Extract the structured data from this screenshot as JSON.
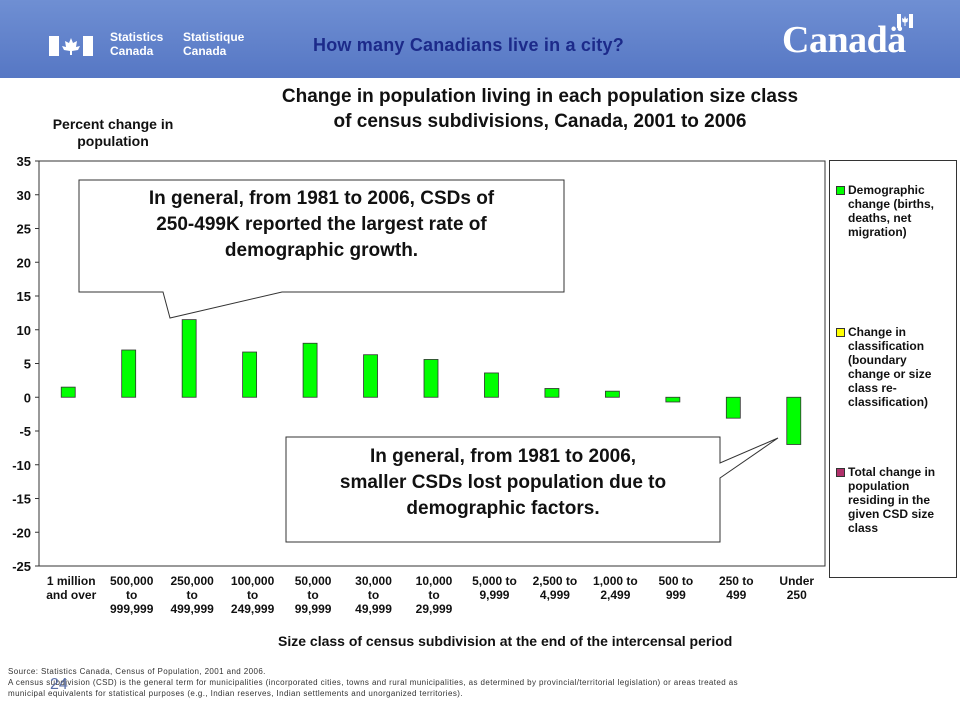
{
  "header": {
    "agency_en_line1": "Statistics",
    "agency_en_line2": "Canada",
    "agency_fr_line1": "Statistique",
    "agency_fr_line2": "Canada",
    "slide_title": "How many Canadians live in a city?",
    "wordmark": "Canadä",
    "banner_color": "#5f80c9",
    "title_color": "#1c2a8a"
  },
  "chart_data": {
    "type": "bar",
    "title": "Change in population living in each population size class of census subdivisions, Canada, 2001 to 2006",
    "title_lines": [
      "Change in population living in each population size class",
      "of census subdivisions, Canada, 2001 to 2006"
    ],
    "ylabel_lines": [
      "Percent change in",
      "population"
    ],
    "xlabel": "Size class of census subdivision at the end of the intercensal period",
    "ylim": [
      -25,
      35
    ],
    "yticks": [
      35,
      30,
      25,
      20,
      15,
      10,
      5,
      0,
      -5,
      -10,
      -15,
      -20,
      -25
    ],
    "grid": false,
    "legend_position": "right",
    "categories": [
      [
        "1 million",
        "and over"
      ],
      [
        "500,000",
        "to",
        "999,999"
      ],
      [
        "250,000",
        "to",
        "499,999"
      ],
      [
        "100,000",
        "to",
        "249,999"
      ],
      [
        "50,000",
        "to",
        "99,999"
      ],
      [
        "30,000",
        "to",
        "49,999"
      ],
      [
        "10,000",
        "to",
        "29,999"
      ],
      [
        "5,000 to",
        "9,999"
      ],
      [
        "2,500 to",
        "4,999"
      ],
      [
        "1,000 to",
        "2,499"
      ],
      [
        "500 to",
        "999"
      ],
      [
        "250 to",
        "499"
      ],
      [
        "Under",
        "250"
      ]
    ],
    "series": [
      {
        "name": "Demographic change (births, deaths, net migration)",
        "color": "#00ff00",
        "values": [
          1.5,
          7.0,
          11.5,
          6.7,
          8.0,
          6.3,
          5.6,
          3.6,
          1.3,
          0.9,
          -0.7,
          -3.1,
          -7.0
        ]
      }
    ],
    "legend": [
      {
        "lines": [
          "Demographic",
          "change (births,",
          "deaths, net",
          "migration)"
        ],
        "color": "#00ff00"
      },
      {
        "lines": [
          "Change in",
          "classification",
          "(boundary",
          "change or size",
          "class re-",
          "classification)"
        ],
        "color": "#ffff00"
      },
      {
        "lines": [
          "Total change in",
          "population",
          "residing in the",
          "given CSD size",
          "class"
        ],
        "color": "#b0306a"
      }
    ]
  },
  "callouts": {
    "top_lines": [
      "In general, from 1981 to 2006, CSDs of",
      "250-499K reported the largest rate of",
      "demographic growth."
    ],
    "bottom_lines": [
      "In general, from 1981 to 2006,",
      "smaller CSDs lost population due to",
      "demographic factors."
    ]
  },
  "footer": {
    "source": "Source: Statistics Canada, Census of Population, 2001 and 2006.",
    "note_line1": "A census subdivision (CSD) is the general term for municipalities (incorporated cities, towns and rural municipalities, as determined by provincial/territorial legislation) or areas treated as",
    "note_line2": "municipal equivalents for statistical purposes (e.g., Indian reserves, Indian settlements and unorganized territories).",
    "page_number": "24"
  }
}
